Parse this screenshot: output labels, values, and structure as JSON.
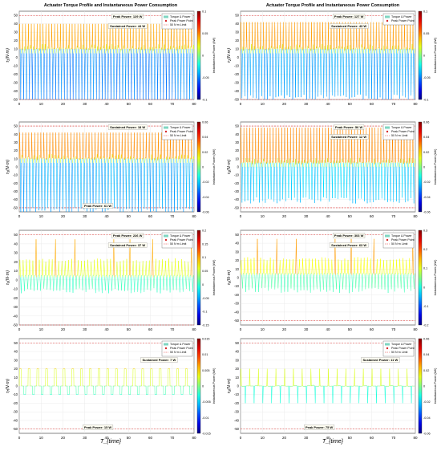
{
  "figure": {
    "title_left": "Actuator Torque Profile and Instantaneous Power Consumption",
    "title_right": "Actuator Torque Profile and Instantaneous Power Consumption",
    "x_label": "T_{time}",
    "cbar_label": "Instantaneous Power (kW)"
  },
  "chart_data": [
    {
      "type": "line",
      "panel": "row1-left",
      "ylabel": "τ₁(N·m)",
      "xlim": [
        0,
        80
      ],
      "ylim": [
        -50,
        55
      ],
      "x_ticks": [
        0,
        10,
        20,
        30,
        40,
        50,
        60,
        70,
        80
      ],
      "y_ticks": [
        -50,
        -40,
        -30,
        -20,
        -10,
        0,
        10,
        20,
        30,
        40,
        50
      ],
      "cbar_ticks": [
        0.1,
        0.05,
        0,
        -0.05,
        -0.1
      ],
      "pattern": "dense",
      "base": 10,
      "amp_up": 40,
      "amp_down": 58,
      "cycles": 60,
      "annotations": [
        "Peak Power: 129 W",
        "Sustained Power: 44 W"
      ],
      "legend": [
        "Torque & Power",
        "Peak Power Point",
        "50 N·m Limit"
      ],
      "limit_lines": [
        50,
        -50
      ]
    },
    {
      "type": "line",
      "panel": "row1-right",
      "ylabel": "τ₂(N·m)",
      "xlim": [
        0,
        80
      ],
      "ylim": [
        -50,
        55
      ],
      "x_ticks": [
        0,
        10,
        20,
        30,
        40,
        50,
        60,
        70,
        80
      ],
      "y_ticks": [
        -50,
        -40,
        -30,
        -20,
        -10,
        0,
        10,
        20,
        30,
        40,
        50
      ],
      "cbar_ticks": [
        0.1,
        0.05,
        0,
        -0.05,
        -0.1
      ],
      "pattern": "dense",
      "base": 10,
      "amp_up": 42,
      "amp_down": 52,
      "cycles": 62,
      "annotations": [
        "Peak Power: 127 W",
        "Sustained Power: 43 W"
      ],
      "legend": [
        "Torque & Power",
        "Peak Power Point"
      ],
      "limit_lines": [
        50,
        -50
      ]
    },
    {
      "type": "line",
      "panel": "row2-left",
      "ylabel": "τ₃(N·m)",
      "xlim": [
        0,
        80
      ],
      "ylim": [
        -55,
        55
      ],
      "x_ticks": [
        0,
        10,
        20,
        30,
        40,
        50,
        60,
        70,
        80
      ],
      "y_ticks": [
        -50,
        -40,
        -30,
        -20,
        -10,
        0,
        10,
        20,
        30,
        40,
        50
      ],
      "cbar_ticks": [
        0.06,
        0.04,
        0.02,
        0,
        -0.02,
        -0.04,
        -0.06
      ],
      "pattern": "dense",
      "base": 10,
      "amp_up": 42,
      "amp_down": 58,
      "cycles": 58,
      "annotations": [
        "Sustained Power: 18 W",
        "Peak Power: 61 W"
      ],
      "legend": [
        "Torque & Power",
        "Peak Power Point",
        "50 N·m Limit"
      ],
      "limit_lines": [
        50,
        -50
      ]
    },
    {
      "type": "line",
      "panel": "row2-right",
      "ylabel": "τ₄(N·m)",
      "xlim": [
        0,
        80
      ],
      "ylim": [
        -55,
        55
      ],
      "x_ticks": [
        0,
        10,
        20,
        30,
        40,
        50,
        60,
        70,
        80
      ],
      "y_ticks": [
        -50,
        -40,
        -30,
        -20,
        -10,
        0,
        10,
        20,
        30,
        40,
        50
      ],
      "cbar_ticks": [
        0.06,
        0.04,
        0.02,
        0,
        -0.02,
        -0.04,
        -0.06
      ],
      "pattern": "dense",
      "base": 5,
      "amp_up": 48,
      "amp_down": 45,
      "cycles": 60,
      "annotations": [
        "Peak Power: 56 W",
        "Sustained Power: 12 W"
      ],
      "legend": [
        "Torque & Power",
        "Peak Power Point",
        "50 N·m Limit"
      ],
      "limit_lines": [
        50,
        -50
      ]
    },
    {
      "type": "line",
      "panel": "row3-left",
      "ylabel": "τ₅(N·m)",
      "xlim": [
        0,
        80
      ],
      "ylim": [
        -50,
        55
      ],
      "x_ticks": [
        0,
        10,
        20,
        30,
        40,
        50,
        60,
        70,
        80
      ],
      "y_ticks": [
        -50,
        -40,
        -30,
        -20,
        -10,
        0,
        10,
        20,
        30,
        40,
        50
      ],
      "cbar_ticks": [
        0.2,
        0.15,
        0.1,
        0.05,
        0,
        -0.05,
        -0.1,
        -0.15
      ],
      "pattern": "mid",
      "base": 5,
      "amp_up": 20,
      "amp_down": 15,
      "cycles": 54,
      "annotations": [
        "Peak Power: 226 W",
        "Sustained Power: 37 W"
      ],
      "legend": [
        "Torque & Power",
        "Peak Power Point",
        "50 N·m Limit"
      ],
      "limit_lines": [
        50,
        -50
      ]
    },
    {
      "type": "line",
      "panel": "row3-right",
      "ylabel": "τ₆(N·m)",
      "xlim": [
        0,
        80
      ],
      "ylim": [
        -55,
        55
      ],
      "x_ticks": [
        0,
        10,
        20,
        30,
        40,
        50,
        60,
        70,
        80
      ],
      "y_ticks": [
        -50,
        -40,
        -30,
        -20,
        -10,
        0,
        10,
        20,
        30,
        40,
        50
      ],
      "cbar_ticks": [
        0.3,
        0.2,
        0.1,
        0,
        -0.1,
        -0.2
      ],
      "pattern": "mid",
      "base": 5,
      "amp_up": 20,
      "amp_down": 18,
      "cycles": 54,
      "annotations": [
        "Peak Power: 303 W",
        "Sustained Power: 63 W"
      ],
      "legend": [
        "Torque & Power",
        "Peak Power Point",
        "50 N·m Limit"
      ],
      "limit_lines": [
        50,
        -50
      ]
    },
    {
      "type": "line",
      "panel": "row4-left",
      "ylabel": "τ₇(N·m)",
      "xlim": [
        0,
        80
      ],
      "ylim": [
        -55,
        55
      ],
      "x_ticks": [
        0,
        10,
        20,
        30,
        40,
        50,
        60,
        70,
        80
      ],
      "y_ticks": [
        -50,
        -40,
        -30,
        -20,
        -10,
        0,
        10,
        20,
        30,
        40,
        50
      ],
      "cbar_ticks": [
        0.015,
        0.01,
        0.005,
        0,
        -0.005,
        -0.01,
        -0.015
      ],
      "pattern": "square",
      "base": 0,
      "amp_up": 20,
      "amp_down": 10,
      "cycles": 40,
      "annotations": [
        "Sustained Power: 7 W",
        "Peak Power: 15 W"
      ],
      "legend": [
        "Torque & Power",
        "Peak Power Point",
        "50 N·m Limit"
      ],
      "limit_lines": [
        50,
        -50
      ]
    },
    {
      "type": "line",
      "panel": "row4-right",
      "ylabel": "τ₈(N·m)",
      "xlim": [
        0,
        80
      ],
      "ylim": [
        -55,
        55
      ],
      "x_ticks": [
        0,
        10,
        20,
        30,
        40,
        50,
        60,
        70,
        80
      ],
      "y_ticks": [
        -50,
        -40,
        -30,
        -20,
        -10,
        0,
        10,
        20,
        30,
        40,
        50
      ],
      "cbar_ticks": [
        0.06,
        0.04,
        0.02,
        0,
        -0.02,
        -0.04,
        -0.06
      ],
      "pattern": "spikes",
      "base": 0,
      "amp_up": 20,
      "amp_down": 20,
      "cycles": 40,
      "annotations": [
        "Sustained Power: 11 W",
        "Peak Power: 75 W"
      ],
      "legend": [
        "Torque & Power",
        "Peak Power Point",
        "50 N·m Limit"
      ],
      "limit_lines": [
        50,
        -50
      ]
    }
  ]
}
